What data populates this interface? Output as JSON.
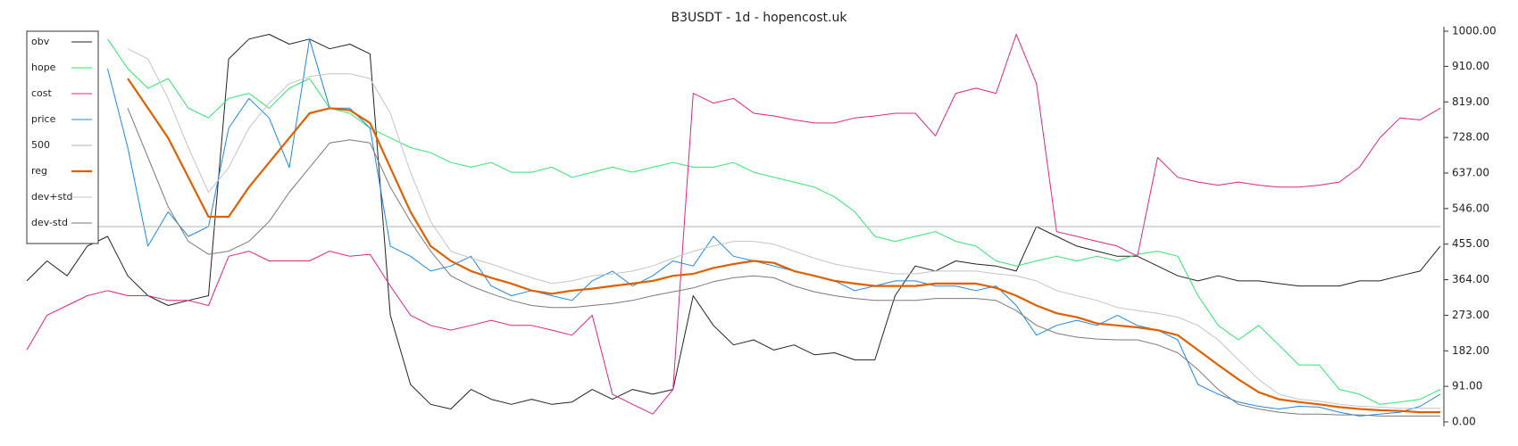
{
  "chart_data": {
    "type": "line",
    "title": "B3USDT - 1d - hopencost.uk",
    "ylim": [
      0,
      1000
    ],
    "yticks": [
      {
        "value": 0,
        "label": "0.00"
      },
      {
        "value": 91,
        "label": "91.00"
      },
      {
        "value": 182,
        "label": "182.00"
      },
      {
        "value": 273,
        "label": "273.00"
      },
      {
        "value": 364,
        "label": "364.00"
      },
      {
        "value": 455,
        "label": "455.00"
      },
      {
        "value": 546,
        "label": "546.00"
      },
      {
        "value": 637,
        "label": "637.00"
      },
      {
        "value": 728,
        "label": "728.00"
      },
      {
        "value": 819,
        "label": "819.00"
      },
      {
        "value": 910,
        "label": "910.00"
      },
      {
        "value": 1000,
        "label": "1000.00"
      }
    ],
    "legend": "upper left",
    "series": [
      {
        "name": "obv",
        "color": "#222222",
        "width": 1,
        "values": [
          361,
          412,
          374,
          450,
          475,
          374,
          323,
          298,
          311,
          323,
          929,
          980,
          992,
          967,
          980,
          955,
          967,
          942,
          273,
          96,
          45,
          33,
          83,
          58,
          45,
          58,
          45,
          51,
          83,
          58,
          83,
          71,
          83,
          323,
          247,
          197,
          210,
          184,
          197,
          172,
          177,
          159,
          159,
          323,
          399,
          386,
          412,
          404,
          399,
          386,
          500,
          475,
          450,
          437,
          424,
          424,
          399,
          374,
          361,
          374,
          361,
          361,
          354,
          348,
          348,
          348,
          361,
          361,
          374,
          386,
          450
        ]
      },
      {
        "name": "hope",
        "color": "#2ee66b",
        "width": 1,
        "values": [
          null,
          null,
          null,
          null,
          980,
          904,
          854,
          879,
          803,
          778,
          828,
          841,
          803,
          854,
          879,
          803,
          790,
          752,
          727,
          702,
          689,
          664,
          652,
          664,
          639,
          639,
          652,
          626,
          639,
          652,
          639,
          652,
          664,
          652,
          652,
          664,
          639,
          626,
          614,
          601,
          576,
          538,
          475,
          462,
          475,
          487,
          462,
          450,
          412,
          399,
          412,
          424,
          412,
          424,
          412,
          429,
          437,
          424,
          323,
          247,
          210,
          247,
          197,
          146,
          146,
          83,
          71,
          45,
          51,
          58,
          83
        ]
      },
      {
        "name": "cost",
        "color": "#e0218a",
        "width": 1,
        "values": [
          184,
          273,
          298,
          323,
          336,
          323,
          323,
          311,
          311,
          298,
          424,
          437,
          412,
          412,
          412,
          437,
          424,
          429,
          348,
          273,
          247,
          235,
          247,
          260,
          247,
          247,
          235,
          222,
          273,
          71,
          45,
          20,
          83,
          841,
          816,
          828,
          790,
          783,
          773,
          765,
          765,
          778,
          783,
          790,
          790,
          732,
          841,
          854,
          841,
          992,
          866,
          487,
          475,
          462,
          450,
          424,
          677,
          626,
          614,
          606,
          614,
          606,
          601,
          601,
          606,
          614,
          652,
          727,
          778,
          773,
          803
        ]
      },
      {
        "name": "price",
        "color": "#1e88e5",
        "width": 1,
        "values": [
          null,
          null,
          null,
          null,
          904,
          702,
          450,
          538,
          475,
          500,
          752,
          828,
          778,
          651,
          980,
          803,
          803,
          752,
          450,
          424,
          386,
          399,
          424,
          348,
          323,
          336,
          323,
          311,
          361,
          386,
          348,
          374,
          412,
          399,
          475,
          424,
          412,
          399,
          386,
          374,
          361,
          336,
          348,
          361,
          361,
          348,
          348,
          336,
          348,
          298,
          222,
          247,
          260,
          247,
          273,
          247,
          235,
          210,
          96,
          71,
          51,
          40,
          33,
          40,
          38,
          25,
          15,
          20,
          25,
          40,
          71
        ]
      },
      {
        "name": "500",
        "color": "#b0b0b0",
        "width": 1,
        "values": [
          500,
          500,
          500,
          500,
          500,
          500,
          500,
          500,
          500,
          500,
          500,
          500,
          500,
          500,
          500,
          500,
          500,
          500,
          500,
          500,
          500,
          500,
          500,
          500,
          500,
          500,
          500,
          500,
          500,
          500,
          500,
          500,
          500,
          500,
          500,
          500,
          500,
          500,
          500,
          500,
          500,
          500,
          500,
          500,
          500,
          500,
          500,
          500,
          500,
          500,
          500,
          500,
          500,
          500,
          500,
          500,
          500,
          500,
          500,
          500,
          500,
          500,
          500,
          500,
          500,
          500,
          500,
          500,
          500,
          500,
          500
        ]
      },
      {
        "name": "reg",
        "color": "#e06000",
        "width": 2.2,
        "values": [
          null,
          null,
          null,
          null,
          null,
          879,
          803,
          727,
          626,
          525,
          525,
          601,
          664,
          727,
          790,
          803,
          798,
          765,
          651,
          538,
          450,
          412,
          386,
          369,
          354,
          336,
          328,
          336,
          341,
          348,
          354,
          361,
          374,
          379,
          394,
          404,
          412,
          407,
          386,
          374,
          361,
          354,
          348,
          348,
          348,
          354,
          354,
          354,
          343,
          323,
          298,
          278,
          268,
          252,
          247,
          242,
          235,
          222,
          184,
          146,
          109,
          76,
          58,
          51,
          45,
          38,
          33,
          30,
          28,
          25,
          25
        ]
      },
      {
        "name": "dev+std",
        "color": "#c4c4c4",
        "width": 1,
        "values": [
          null,
          null,
          null,
          null,
          null,
          955,
          929,
          828,
          702,
          588,
          651,
          752,
          816,
          866,
          884,
          891,
          891,
          879,
          790,
          639,
          513,
          437,
          419,
          404,
          386,
          369,
          354,
          361,
          374,
          379,
          386,
          399,
          419,
          437,
          450,
          462,
          462,
          455,
          437,
          419,
          404,
          394,
          386,
          379,
          379,
          386,
          386,
          386,
          379,
          374,
          361,
          336,
          323,
          311,
          293,
          285,
          278,
          268,
          247,
          210,
          159,
          109,
          71,
          58,
          53,
          45,
          40,
          38,
          35,
          35,
          35
        ]
      },
      {
        "name": "dev-std",
        "color": "#7a7a7a",
        "width": 1,
        "values": [
          null,
          null,
          null,
          null,
          null,
          803,
          677,
          551,
          462,
          429,
          437,
          462,
          513,
          588,
          651,
          714,
          722,
          714,
          601,
          513,
          437,
          374,
          348,
          328,
          311,
          298,
          293,
          293,
          298,
          303,
          311,
          323,
          333,
          343,
          359,
          369,
          374,
          369,
          348,
          333,
          323,
          316,
          311,
          311,
          311,
          316,
          316,
          316,
          311,
          285,
          247,
          227,
          217,
          212,
          210,
          210,
          197,
          177,
          134,
          83,
          45,
          33,
          25,
          20,
          20,
          18,
          18,
          15,
          15,
          15,
          15
        ]
      }
    ]
  }
}
